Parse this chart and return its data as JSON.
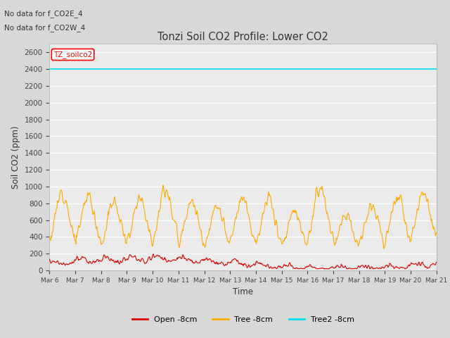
{
  "title": "Tonzi Soil CO2 Profile: Lower CO2",
  "xlabel": "Time",
  "ylabel": "Soil CO2 (ppm)",
  "annotations": [
    "No data for f_CO2E_4",
    "No data for f_CO2W_4"
  ],
  "legend_label": "TZ_soilco2",
  "series_labels": [
    "Open -8cm",
    "Tree -8cm",
    "Tree2 -8cm"
  ],
  "series_colors": [
    "#dd0000",
    "#ffaa00",
    "#00ddee"
  ],
  "ylim": [
    0,
    2700
  ],
  "yticks": [
    0,
    200,
    400,
    600,
    800,
    1000,
    1200,
    1400,
    1600,
    1800,
    2000,
    2200,
    2400,
    2600
  ],
  "n_days": 15,
  "tree2_value": 2400,
  "background_color": "#d8d8d8",
  "plot_bg_color": "#ebebeb",
  "grid_color": "#ffffff",
  "figsize": [
    6.4,
    4.8
  ],
  "dpi": 100
}
